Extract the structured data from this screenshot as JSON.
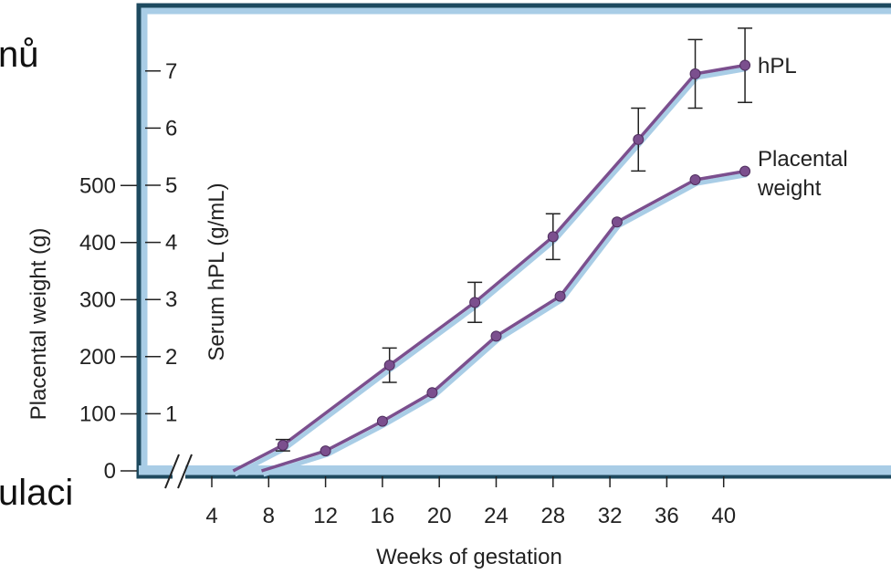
{
  "slide_fragments": [
    "nů",
    "ulaci"
  ],
  "chart_data": {
    "type": "line",
    "xlabel": "Weeks of gestation",
    "x_ticks": [
      4,
      8,
      12,
      16,
      20,
      24,
      28,
      32,
      36,
      40
    ],
    "y_left": {
      "label": "Placental weight (g)",
      "ticks": [
        0,
        100,
        200,
        300,
        400,
        500
      ],
      "ylim": [
        0,
        500
      ]
    },
    "y_right": {
      "label": "Serum hPL (g/mL)",
      "ticks": [
        1,
        2,
        3,
        4,
        5,
        6,
        7
      ],
      "ylim": [
        0,
        7
      ]
    },
    "axis_break": true,
    "series": [
      {
        "name": "hPL",
        "axis": "right",
        "color": "#7b4f8e",
        "shadow_color": "#a9cde6",
        "points": [
          {
            "x": 9,
            "y": 0.45,
            "err": 0.1
          },
          {
            "x": 16.5,
            "y": 1.85,
            "err": 0.3
          },
          {
            "x": 22.5,
            "y": 2.95,
            "err": 0.35
          },
          {
            "x": 28,
            "y": 4.1,
            "err": 0.4
          },
          {
            "x": 34,
            "y": 5.8,
            "err": 0.55
          },
          {
            "x": 38,
            "y": 6.95,
            "err": 0.6
          },
          {
            "x": 41.5,
            "y": 7.1,
            "err": 0.65
          }
        ],
        "start": {
          "x": 5.5,
          "y": 0
        }
      },
      {
        "name": "Placental weight",
        "label_lines": [
          "Placental",
          "weight"
        ],
        "axis": "left",
        "color": "#7b4f8e",
        "shadow_color": "#a9cde6",
        "points": [
          {
            "x": 12,
            "y": 35
          },
          {
            "x": 16,
            "y": 87
          },
          {
            "x": 19.5,
            "y": 137
          },
          {
            "x": 24,
            "y": 236
          },
          {
            "x": 28.5,
            "y": 306
          },
          {
            "x": 32.5,
            "y": 436
          },
          {
            "x": 38,
            "y": 510
          },
          {
            "x": 41.5,
            "y": 525
          }
        ],
        "start": {
          "x": 7.5,
          "y": 0
        }
      }
    ],
    "frame_color": "#1e4a5f",
    "frame_fill": "#a9cde6"
  }
}
